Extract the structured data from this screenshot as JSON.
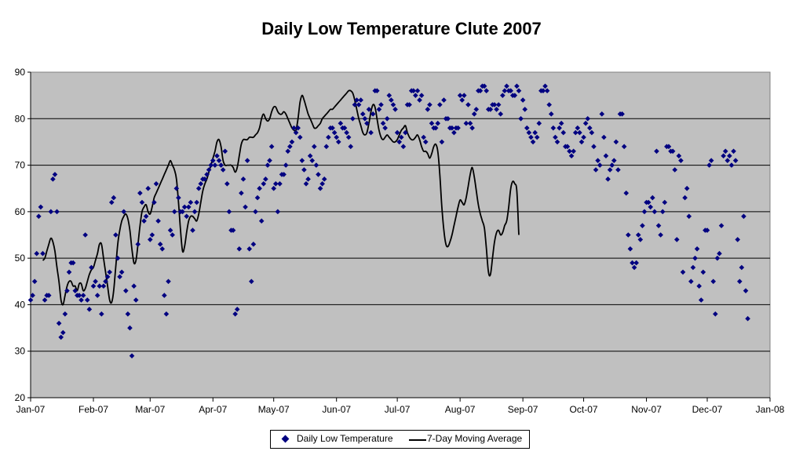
{
  "colors": {
    "plot_bg": "#c0c0c0",
    "marker": "#000080",
    "line": "#000000",
    "grid": "#000000"
  },
  "chart_data": {
    "type": "scatter",
    "title": "Daily Low Temperature Clute 2007",
    "xlabel": "",
    "ylabel": "",
    "ylim": [
      20,
      90
    ],
    "yticks": [
      20,
      30,
      40,
      50,
      60,
      70,
      80,
      90
    ],
    "xlim": [
      "2007-01-01",
      "2008-01-01"
    ],
    "xticks": [
      {
        "date": "2007-01-01",
        "label": "Jan-07"
      },
      {
        "date": "2007-02-01",
        "label": "Feb-07"
      },
      {
        "date": "2007-03-01",
        "label": "Mar-07"
      },
      {
        "date": "2007-04-01",
        "label": "Apr-07"
      },
      {
        "date": "2007-05-01",
        "label": "May-07"
      },
      {
        "date": "2007-06-01",
        "label": "Jun-07"
      },
      {
        "date": "2007-07-01",
        "label": "Jul-07"
      },
      {
        "date": "2007-08-01",
        "label": "Aug-07"
      },
      {
        "date": "2007-09-01",
        "label": "Sep-07"
      },
      {
        "date": "2007-10-01",
        "label": "Oct-07"
      },
      {
        "date": "2007-11-01",
        "label": "Nov-07"
      },
      {
        "date": "2007-12-01",
        "label": "Dec-07"
      },
      {
        "date": "2008-01-01",
        "label": "Jan-08"
      }
    ],
    "grid": "horizontal major gridlines",
    "legend_position": "bottom",
    "series": [
      {
        "name": "Daily Low Temperature",
        "marker": "diamond",
        "start_date": "2007-01-01",
        "values": [
          41,
          42,
          45,
          51,
          59,
          61,
          51,
          41,
          42,
          42,
          60,
          67,
          68,
          60,
          36,
          33,
          34,
          38,
          43,
          47,
          49,
          49,
          43,
          42,
          42,
          41,
          42,
          55,
          41,
          39,
          48,
          44,
          45,
          42,
          44,
          38,
          44,
          45,
          46,
          47,
          62,
          63,
          55,
          50,
          46,
          47,
          60,
          43,
          38,
          35,
          29,
          44,
          41,
          53,
          64,
          62,
          58,
          59,
          65,
          54,
          55,
          62,
          66,
          58,
          53,
          52,
          42,
          38,
          45,
          56,
          55,
          60,
          65,
          63,
          60,
          60,
          61,
          59,
          61,
          62,
          56,
          60,
          62,
          65,
          66,
          67,
          67,
          68,
          69,
          70,
          71,
          70,
          72,
          71,
          70,
          69,
          73,
          66,
          60,
          56,
          56,
          38,
          39,
          52,
          64,
          67,
          61,
          71,
          52,
          45,
          53,
          60,
          63,
          65,
          58,
          66,
          67,
          70,
          71,
          74,
          65,
          66,
          60,
          66,
          68,
          68,
          70,
          73,
          74,
          75,
          78,
          77,
          78,
          76,
          71,
          69,
          66,
          67,
          72,
          71,
          74,
          70,
          68,
          65,
          66,
          67,
          74,
          76,
          78,
          78,
          77,
          76,
          75,
          79,
          78,
          78,
          77,
          76,
          74,
          80,
          83,
          84,
          83,
          84,
          81,
          80,
          79,
          82,
          77,
          81,
          86,
          86,
          82,
          83,
          79,
          78,
          80,
          85,
          84,
          83,
          82,
          77,
          75,
          76,
          74,
          77,
          83,
          83,
          86,
          86,
          85,
          86,
          84,
          85,
          76,
          75,
          82,
          83,
          79,
          78,
          78,
          79,
          83,
          75,
          84,
          80,
          80,
          78,
          78,
          77,
          78,
          78,
          85,
          84,
          85,
          79,
          83,
          79,
          78,
          81,
          82,
          86,
          86,
          87,
          87,
          86,
          82,
          82,
          83,
          83,
          82,
          83,
          81,
          85,
          86,
          87,
          86,
          86,
          85,
          85,
          87,
          86,
          80,
          84,
          82,
          78,
          77,
          76,
          75,
          77,
          76,
          79,
          86,
          86,
          87,
          86,
          83,
          81,
          78,
          76,
          75,
          78,
          79,
          77,
          74,
          74,
          73,
          72,
          73,
          77,
          78,
          77,
          75,
          76,
          79,
          80,
          78,
          77,
          74,
          69,
          71,
          70,
          81,
          76,
          72,
          67,
          69,
          70,
          71,
          75,
          69,
          81,
          81,
          74,
          64,
          55,
          52,
          49,
          48,
          49,
          55,
          54,
          57,
          60,
          62,
          62,
          61,
          63,
          60,
          73,
          57,
          55,
          60,
          62,
          74,
          74,
          73,
          73,
          69,
          54,
          72,
          71,
          47,
          63,
          65,
          59,
          45,
          48,
          50,
          52,
          44,
          41,
          47,
          56,
          56,
          70,
          71,
          45,
          38,
          50,
          51,
          57,
          72,
          73,
          71,
          72,
          70,
          73,
          71,
          54,
          45,
          48,
          59,
          43,
          37
        ]
      },
      {
        "name": "7-Day Moving Average",
        "type": "line",
        "start_date": "2007-01-07",
        "values": [
          49.5,
          50.0,
          51.5,
          53.0,
          54.3,
          53.5,
          51.5,
          48.0,
          45.0,
          41.0,
          40.0,
          42.0,
          44.0,
          45.0,
          45.0,
          44.0,
          44.0,
          43.0,
          44.5,
          44.5,
          43.0,
          43.5,
          45.0,
          46.5,
          47.5,
          48.0,
          49.5,
          51.0,
          53.0,
          53.0,
          50.0,
          47.0,
          44.0,
          41.0,
          40.5,
          43.0,
          48.0,
          53.0,
          56.0,
          58.0,
          59.0,
          59.5,
          58.5,
          56.0,
          52.0,
          49.0,
          49.5,
          53.0,
          57.0,
          60.0,
          61.0,
          61.5,
          60.0,
          59.5,
          61.0,
          63.0,
          64.0,
          65.0,
          66.0,
          67.0,
          68.0,
          69.0,
          70.0,
          71.0,
          70.0,
          69.0,
          67.0,
          62.0,
          56.0,
          51.5,
          52.5,
          55.5,
          58.0,
          59.0,
          59.0,
          58.5,
          58.0,
          59.5,
          62.0,
          64.5,
          66.0,
          67.0,
          68.5,
          70.0,
          71.5,
          73.0,
          75.0,
          75.5,
          74.0,
          71.0,
          70.0,
          70.0,
          70.0,
          70.0,
          69.5,
          68.5,
          69.5,
          72.0,
          74.5,
          75.5,
          75.5,
          75.5,
          76.0,
          76.0,
          76.0,
          76.5,
          77.0,
          78.0,
          80.0,
          81.0,
          80.0,
          79.5,
          80.0,
          81.5,
          82.5,
          82.5,
          81.5,
          81.0,
          81.0,
          81.5,
          81.0,
          80.0,
          79.0,
          78.0,
          77.5,
          77.5,
          80.0,
          83.5,
          85.0,
          84.0,
          82.5,
          81.0,
          80.0,
          79.0,
          78.0,
          78.0,
          78.5,
          79.0,
          80.0,
          80.5,
          81.0,
          81.5,
          82.0,
          82.0,
          82.5,
          83.0,
          83.5,
          84.0,
          84.5,
          85.0,
          85.5,
          86.0,
          86.0,
          85.5,
          84.0,
          82.0,
          80.0,
          78.5,
          77.0,
          76.5,
          77.0,
          79.0,
          81.5,
          83.0,
          82.5,
          80.0,
          77.5,
          76.0,
          75.5,
          76.0,
          76.5,
          76.0,
          75.5,
          75.0,
          75.0,
          75.5,
          76.5,
          77.5,
          78.0,
          78.5,
          77.0,
          76.0,
          75.5,
          75.5,
          76.0,
          76.5,
          75.5,
          74.0,
          73.0,
          73.0,
          72.5,
          71.5,
          72.5,
          74.0,
          74.5,
          73.0,
          68.0,
          61.0,
          56.0,
          53.0,
          52.5,
          53.5,
          55.0,
          57.0,
          59.0,
          61.0,
          62.5,
          62.0,
          61.5,
          63.0,
          65.5,
          68.0,
          69.5,
          67.5,
          64.5,
          61.5,
          59.5,
          58.0,
          56.5,
          52.0,
          47.0,
          46.5,
          50.0,
          53.5,
          55.5,
          56.0,
          55.0,
          55.5,
          57.0,
          58.0,
          61.0,
          65.0,
          66.5,
          66.0,
          64.5,
          55.0
        ]
      }
    ]
  },
  "legend": {
    "scatter_label": "Daily Low Temperature",
    "line_label": "7-Day Moving Average"
  }
}
